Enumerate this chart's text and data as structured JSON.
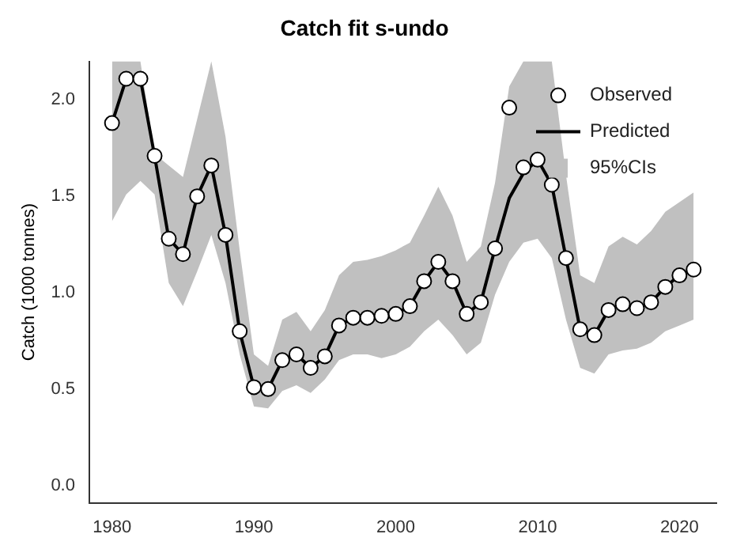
{
  "chart_data": {
    "type": "line",
    "title": "Catch fit s-undo",
    "ylabel": "Catch (1000 tonnes)",
    "x": [
      1980,
      1981,
      1982,
      1983,
      1984,
      1985,
      1986,
      1987,
      1988,
      1989,
      1990,
      1991,
      1992,
      1993,
      1994,
      1995,
      1996,
      1997,
      1998,
      1999,
      2000,
      2001,
      2002,
      2003,
      2004,
      2005,
      2006,
      2007,
      2008,
      2009,
      2010,
      2011,
      2012,
      2013,
      2014,
      2015,
      2016,
      2017,
      2018,
      2019,
      2020,
      2021
    ],
    "series": [
      {
        "name": "Observed",
        "type": "scatter",
        "marker": "circle",
        "color": "#000000",
        "values": [
          1.88,
          2.11,
          2.11,
          1.71,
          1.28,
          1.2,
          1.5,
          1.66,
          1.3,
          0.8,
          0.51,
          0.5,
          0.65,
          0.68,
          0.61,
          0.67,
          0.83,
          0.87,
          0.87,
          0.88,
          0.89,
          0.93,
          1.06,
          1.16,
          1.06,
          0.89,
          0.95,
          1.23,
          1.96,
          1.65,
          1.69,
          1.56,
          1.18,
          0.81,
          0.78,
          0.91,
          0.94,
          0.92,
          0.95,
          1.03,
          1.09,
          1.12
        ]
      },
      {
        "name": "Predicted",
        "line_style": "solid",
        "color": "#000000",
        "values": [
          1.88,
          2.11,
          2.11,
          1.71,
          1.28,
          1.2,
          1.5,
          1.66,
          1.3,
          0.8,
          0.51,
          0.5,
          0.65,
          0.68,
          0.61,
          0.67,
          0.83,
          0.87,
          0.87,
          0.88,
          0.89,
          0.93,
          1.06,
          1.16,
          1.06,
          0.89,
          0.95,
          1.23,
          1.49,
          1.62,
          1.69,
          1.56,
          1.18,
          0.81,
          0.78,
          0.91,
          0.94,
          0.92,
          0.95,
          1.03,
          1.09,
          1.12
        ],
        "lower": [
          1.37,
          1.51,
          1.58,
          1.51,
          1.05,
          0.93,
          1.11,
          1.3,
          1.05,
          0.68,
          0.41,
          0.4,
          0.49,
          0.52,
          0.48,
          0.55,
          0.65,
          0.68,
          0.68,
          0.66,
          0.68,
          0.72,
          0.8,
          0.86,
          0.78,
          0.68,
          0.74,
          0.99,
          1.16,
          1.26,
          1.28,
          1.18,
          0.86,
          0.61,
          0.58,
          0.68,
          0.7,
          0.71,
          0.74,
          0.8,
          0.83,
          0.86
        ],
        "upper": [
          2.2,
          2.2,
          2.2,
          1.72,
          1.66,
          1.6,
          1.9,
          2.2,
          1.81,
          1.22,
          0.68,
          0.62,
          0.86,
          0.9,
          0.8,
          0.91,
          1.09,
          1.16,
          1.17,
          1.19,
          1.22,
          1.26,
          1.4,
          1.55,
          1.4,
          1.16,
          1.24,
          1.57,
          2.07,
          2.2,
          2.2,
          2.2,
          1.61,
          1.09,
          1.05,
          1.24,
          1.29,
          1.25,
          1.32,
          1.42,
          1.47,
          1.52
        ]
      }
    ],
    "xlim": [
      1978.4,
      2022.6
    ],
    "xticks": [
      1980,
      1990,
      2000,
      2010,
      2020
    ],
    "ylim": [
      -0.09,
      2.2
    ],
    "yticks": [
      {
        "value": 0,
        "label": "0.0"
      },
      {
        "value": 0.5,
        "label": "0.5"
      },
      {
        "value": 1,
        "label": "1.0"
      },
      {
        "value": 1.5,
        "label": "1.5"
      },
      {
        "value": 2,
        "label": "2.0"
      }
    ],
    "annotations": [
      "95%CIs"
    ],
    "grid": false,
    "legend": "top right"
  }
}
